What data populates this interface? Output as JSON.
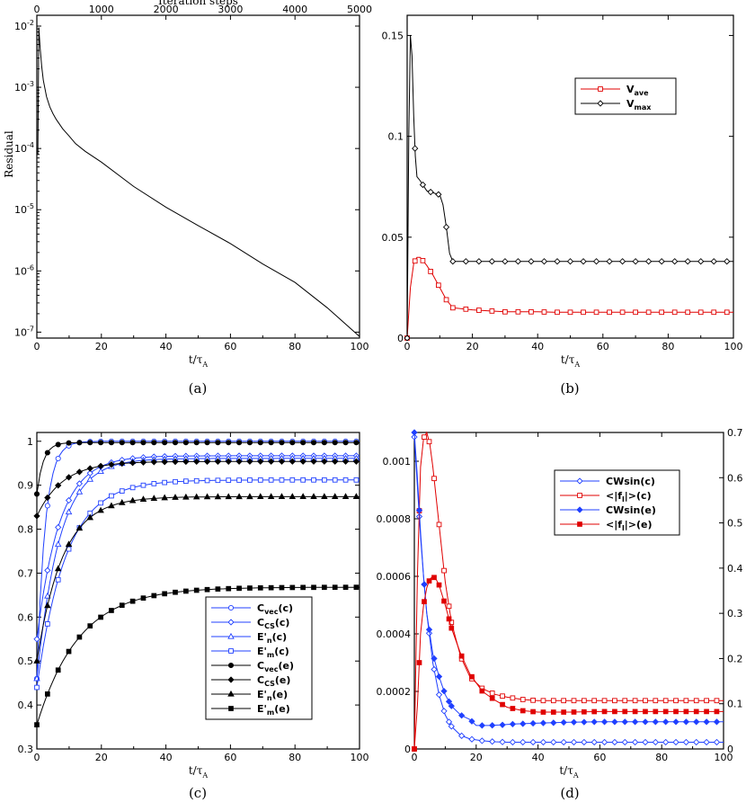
{
  "chart_data": [
    {
      "id": "a",
      "type": "line",
      "caption": "(a)",
      "xlabel": "t/τA",
      "x2label": "Iteration steps",
      "ylabel": "Residual",
      "yscale": "log",
      "xlim": [
        0,
        100
      ],
      "x2lim": [
        0,
        5000
      ],
      "ylim": [
        8e-08,
        0.015
      ],
      "xticks": [
        "0",
        "20",
        "40",
        "60",
        "80",
        "100"
      ],
      "x2ticks": [
        "0",
        "1000",
        "2000",
        "3000",
        "4000",
        "5000"
      ],
      "yticks": [
        "10-2",
        "10-3",
        "10-4",
        "10-5",
        "10-6",
        "10-7"
      ],
      "series": [
        {
          "name": "Residual",
          "color": "#000000",
          "x": [
            0.3,
            0.6,
            1,
            1.5,
            2,
            3,
            4,
            5,
            6,
            8,
            10,
            12,
            15,
            20,
            30,
            40,
            50,
            60,
            70,
            80,
            90,
            100
          ],
          "y": [
            8e-05,
            0.0095,
            0.0045,
            0.0022,
            0.0013,
            0.0007,
            0.00048,
            0.00037,
            0.0003,
            0.00021,
            0.00016,
            0.00012,
            9e-05,
            6e-05,
            2.4e-05,
            1.1e-05,
            5.5e-06,
            2.8e-06,
            1.3e-06,
            6.5e-07,
            2.5e-07,
            8.5e-08
          ]
        }
      ]
    },
    {
      "id": "b",
      "type": "line",
      "caption": "(b)",
      "xlabel": "t/τA",
      "ylabel": "",
      "xlim": [
        0,
        100
      ],
      "ylim": [
        0,
        0.16
      ],
      "xticks": [
        "0",
        "20",
        "40",
        "60",
        "80",
        "100"
      ],
      "yticks": [
        "0",
        "0.05",
        "0.1",
        "0.15"
      ],
      "legend": [
        "Vave",
        "Vmax"
      ],
      "series": [
        {
          "name": "Vave",
          "color": "#e00000",
          "marker": "square",
          "x": [
            0,
            1,
            2,
            3,
            4,
            6,
            8,
            10,
            12,
            14,
            17,
            20,
            25,
            30,
            35,
            40,
            45,
            50,
            55,
            60,
            65,
            70,
            75,
            80,
            85,
            90,
            95,
            100
          ],
          "y": [
            0,
            0.025,
            0.037,
            0.04,
            0.04,
            0.036,
            0.031,
            0.025,
            0.019,
            0.015,
            0.0145,
            0.014,
            0.0135,
            0.013,
            0.013,
            0.013,
            0.0128,
            0.0128,
            0.0128,
            0.0128,
            0.0128,
            0.0128,
            0.0128,
            0.0128,
            0.0128,
            0.0128,
            0.0128,
            0.0128
          ]
        },
        {
          "name": "Vmax",
          "color": "#000000",
          "marker": "diamond",
          "x": [
            0,
            0.5,
            1,
            1.5,
            2,
            2.5,
            3,
            4,
            6,
            8,
            10,
            11,
            12,
            13,
            14,
            16,
            18,
            20,
            25,
            30,
            35,
            40,
            45,
            50,
            55,
            60,
            65,
            70,
            75,
            80,
            85,
            90,
            95,
            100
          ],
          "y": [
            0,
            0.1,
            0.15,
            0.14,
            0.11,
            0.09,
            0.08,
            0.078,
            0.073,
            0.072,
            0.071,
            0.066,
            0.055,
            0.042,
            0.038,
            0.038,
            0.038,
            0.038,
            0.038,
            0.038,
            0.038,
            0.038,
            0.038,
            0.038,
            0.038,
            0.038,
            0.038,
            0.038,
            0.038,
            0.038,
            0.038,
            0.038,
            0.038,
            0.038
          ]
        }
      ]
    },
    {
      "id": "c",
      "type": "line",
      "caption": "(c)",
      "xlabel": "t/τA",
      "ylabel": "",
      "xlim": [
        0,
        100
      ],
      "ylim": [
        0.3,
        1.02
      ],
      "xticks": [
        "0",
        "20",
        "40",
        "60",
        "80",
        "100"
      ],
      "yticks": [
        "0.3",
        "0.4",
        "0.5",
        "0.6",
        "0.7",
        "0.8",
        "0.9",
        "1"
      ],
      "legend": [
        "Cvec(c)",
        "CCS(c)",
        "E'n(c)",
        "E'm(c)",
        "Cvec(e)",
        "CCS(e)",
        "E'n(e)",
        "E'm(e)"
      ],
      "series": [
        {
          "name": "Cvec(c)",
          "color": "#2040ff",
          "marker": "circle-open",
          "params": [
            0.46,
            1.0,
            2.5
          ]
        },
        {
          "name": "CCS(c)",
          "color": "#2040ff",
          "marker": "diamond-open",
          "params": [
            0.55,
            0.967,
            7
          ]
        },
        {
          "name": "E'n(c)",
          "color": "#2040ff",
          "marker": "triangle-open",
          "params": [
            0.46,
            0.961,
            7
          ]
        },
        {
          "name": "E'm(c)",
          "color": "#2040ff",
          "marker": "square-open",
          "params": [
            0.44,
            0.912,
            9
          ]
        },
        {
          "name": "Cvec(e)",
          "color": "#000000",
          "marker": "circle-filled",
          "params": [
            0.88,
            0.997,
            2
          ]
        },
        {
          "name": "CCS(e)",
          "color": "#000000",
          "marker": "diamond-filled",
          "params": [
            0.83,
            0.954,
            8
          ]
        },
        {
          "name": "E'n(e)",
          "color": "#000000",
          "marker": "triangle-filled",
          "params": [
            0.5,
            0.874,
            8
          ]
        },
        {
          "name": "E'm(e)",
          "color": "#000000",
          "marker": "square-filled",
          "params": [
            0.355,
            0.668,
            13
          ]
        }
      ]
    },
    {
      "id": "d",
      "type": "line",
      "caption": "(d)",
      "xlabel": "t/τA",
      "ylabel": "",
      "xlim": [
        0,
        100
      ],
      "ylim": [
        0,
        0.0011
      ],
      "y2lim": [
        0,
        0.7
      ],
      "xticks": [
        "0",
        "20",
        "40",
        "60",
        "80",
        "100"
      ],
      "yticks": [
        "0",
        "0.0002",
        "0.0004",
        "0.0006",
        "0.0008",
        "0.001"
      ],
      "y2ticks": [
        "0",
        "0.1",
        "0.2",
        "0.3",
        "0.4",
        "0.5",
        "0.6",
        "0.7"
      ],
      "legend": [
        "CWsin(c)",
        "<|fl|>(c)",
        "CWsin(e)",
        "<|fl|>(e)"
      ],
      "series": [
        {
          "name": "CWsin(c)",
          "color": "#2040ff",
          "marker": "diamond-open",
          "axis": "y2",
          "x": [
            0,
            1,
            2,
            3,
            4,
            6,
            8,
            10,
            12,
            15,
            18,
            22,
            26,
            30,
            40,
            50,
            60,
            70,
            80,
            90,
            100
          ],
          "y": [
            0.69,
            0.58,
            0.47,
            0.38,
            0.3,
            0.19,
            0.12,
            0.075,
            0.05,
            0.03,
            0.022,
            0.018,
            0.016,
            0.015,
            0.015,
            0.015,
            0.015,
            0.015,
            0.015,
            0.015,
            0.015
          ]
        },
        {
          "name": "<|fl|>(c)",
          "color": "#e00000",
          "marker": "square-open",
          "axis": "y",
          "x": [
            0,
            1,
            2,
            3,
            4,
            5,
            6,
            8,
            10,
            12,
            15,
            18,
            22,
            26,
            30,
            35,
            40,
            50,
            60,
            70,
            80,
            90,
            100
          ],
          "y": [
            0,
            0.0006,
            0.00098,
            0.00108,
            0.0011,
            0.00106,
            0.00098,
            0.00078,
            0.00058,
            0.00044,
            0.00032,
            0.00025,
            0.00021,
            0.00019,
            0.00018,
            0.000172,
            0.000168,
            0.000168,
            0.000168,
            0.000168,
            0.000168,
            0.000168,
            0.000168
          ]
        },
        {
          "name": "CWsin(e)",
          "color": "#2040ff",
          "marker": "diamond-filled",
          "axis": "y2",
          "x": [
            0,
            1,
            2,
            3,
            4,
            6,
            8,
            10,
            12,
            15,
            18,
            20,
            24,
            28,
            32,
            36,
            40,
            50,
            60,
            70,
            80,
            90,
            100
          ],
          "y": [
            0.7,
            0.6,
            0.48,
            0.38,
            0.3,
            0.21,
            0.16,
            0.12,
            0.095,
            0.075,
            0.065,
            0.052,
            0.052,
            0.053,
            0.055,
            0.056,
            0.057,
            0.059,
            0.06,
            0.06,
            0.06,
            0.06,
            0.06
          ]
        },
        {
          "name": "<|fl|>(e)",
          "color": "#e00000",
          "marker": "square-filled",
          "axis": "y",
          "x": [
            0,
            1,
            2,
            3,
            4,
            5,
            6,
            7,
            8,
            10,
            12,
            15,
            18,
            22,
            26,
            30,
            35,
            40,
            50,
            60,
            70,
            80,
            90,
            100
          ],
          "y": [
            0,
            0.00015,
            0.0004,
            0.0005,
            0.00056,
            0.00059,
            0.0006,
            0.00059,
            0.00057,
            0.0005,
            0.00042,
            0.00033,
            0.00026,
            0.0002,
            0.00017,
            0.000145,
            0.000133,
            0.000128,
            0.000128,
            0.00013,
            0.00013,
            0.00013,
            0.00013,
            0.00013
          ]
        }
      ]
    }
  ]
}
